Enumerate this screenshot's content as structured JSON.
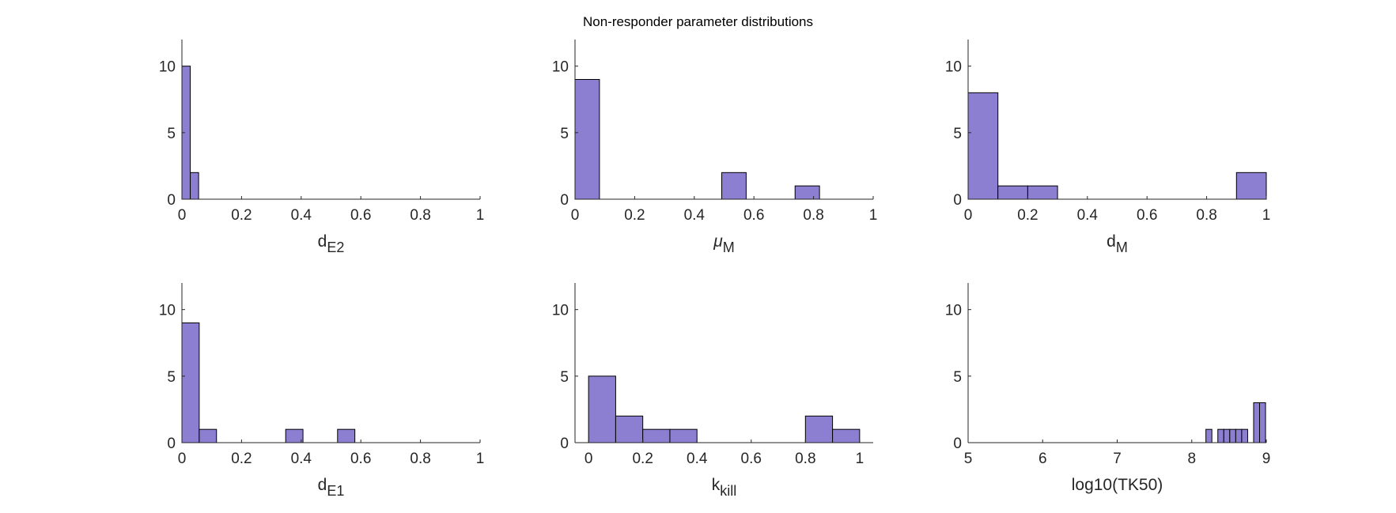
{
  "figure": {
    "title": "Non-responder parameter distributions",
    "bar_color": "#8c7fd2",
    "edge_color": "#000000"
  },
  "chart_data": [
    {
      "type": "bar",
      "subtype": "histogram",
      "xlabel": {
        "base": "d",
        "sub": "E2"
      },
      "xlim": [
        0,
        1
      ],
      "ylim": [
        0,
        12
      ],
      "xticks": [
        0,
        0.2,
        0.4,
        0.6,
        0.8,
        1
      ],
      "xtick_labels": [
        "0",
        "0.2",
        "0.4",
        "0.6",
        "0.8",
        "1"
      ],
      "yticks": [
        0,
        5,
        10
      ],
      "bins": [
        {
          "x0": 0,
          "x1": 0.028,
          "count": 10
        },
        {
          "x0": 0.028,
          "x1": 0.056,
          "count": 2
        }
      ]
    },
    {
      "type": "bar",
      "subtype": "histogram",
      "xlabel": {
        "base": "μ",
        "sub": "M",
        "italic_base": true
      },
      "xlim": [
        0,
        1
      ],
      "ylim": [
        0,
        12
      ],
      "xticks": [
        0,
        0.2,
        0.4,
        0.6,
        0.8,
        1
      ],
      "xtick_labels": [
        "0",
        "0.2",
        "0.4",
        "0.6",
        "0.8",
        "1"
      ],
      "yticks": [
        0,
        5,
        10
      ],
      "bins": [
        {
          "x0": 0,
          "x1": 0.082,
          "count": 9
        },
        {
          "x0": 0.082,
          "x1": 0.164,
          "count": 0
        },
        {
          "x0": 0.164,
          "x1": 0.246,
          "count": 0
        },
        {
          "x0": 0.246,
          "x1": 0.328,
          "count": 0
        },
        {
          "x0": 0.328,
          "x1": 0.41,
          "count": 0
        },
        {
          "x0": 0.41,
          "x1": 0.492,
          "count": 0
        },
        {
          "x0": 0.492,
          "x1": 0.574,
          "count": 2
        },
        {
          "x0": 0.574,
          "x1": 0.656,
          "count": 0
        },
        {
          "x0": 0.656,
          "x1": 0.738,
          "count": 0
        },
        {
          "x0": 0.738,
          "x1": 0.82,
          "count": 1
        }
      ]
    },
    {
      "type": "bar",
      "subtype": "histogram",
      "xlabel": {
        "base": "d",
        "sub": "M"
      },
      "xlim": [
        0,
        1
      ],
      "ylim": [
        0,
        12
      ],
      "xticks": [
        0,
        0.2,
        0.4,
        0.6,
        0.8,
        1
      ],
      "xtick_labels": [
        "0",
        "0.2",
        "0.4",
        "0.6",
        "0.8",
        "1"
      ],
      "yticks": [
        0,
        5,
        10
      ],
      "bins": [
        {
          "x0": 0,
          "x1": 0.1,
          "count": 8
        },
        {
          "x0": 0.1,
          "x1": 0.2,
          "count": 1
        },
        {
          "x0": 0.2,
          "x1": 0.3,
          "count": 1
        },
        {
          "x0": 0.3,
          "x1": 0.4,
          "count": 0
        },
        {
          "x0": 0.4,
          "x1": 0.5,
          "count": 0
        },
        {
          "x0": 0.5,
          "x1": 0.6,
          "count": 0
        },
        {
          "x0": 0.6,
          "x1": 0.7,
          "count": 0
        },
        {
          "x0": 0.7,
          "x1": 0.8,
          "count": 0
        },
        {
          "x0": 0.8,
          "x1": 0.9,
          "count": 0
        },
        {
          "x0": 0.9,
          "x1": 1.0,
          "count": 2
        }
      ]
    },
    {
      "type": "bar",
      "subtype": "histogram",
      "xlabel": {
        "base": "d",
        "sub": "E1"
      },
      "xlim": [
        0,
        1
      ],
      "ylim": [
        0,
        12
      ],
      "xticks": [
        0,
        0.2,
        0.4,
        0.6,
        0.8,
        1
      ],
      "xtick_labels": [
        "0",
        "0.2",
        "0.4",
        "0.6",
        "0.8",
        "1"
      ],
      "yticks": [
        0,
        5,
        10
      ],
      "bins": [
        {
          "x0": 0,
          "x1": 0.058,
          "count": 9
        },
        {
          "x0": 0.058,
          "x1": 0.116,
          "count": 1
        },
        {
          "x0": 0.116,
          "x1": 0.174,
          "count": 0
        },
        {
          "x0": 0.174,
          "x1": 0.232,
          "count": 0
        },
        {
          "x0": 0.232,
          "x1": 0.29,
          "count": 0
        },
        {
          "x0": 0.29,
          "x1": 0.348,
          "count": 0
        },
        {
          "x0": 0.348,
          "x1": 0.406,
          "count": 1
        },
        {
          "x0": 0.406,
          "x1": 0.464,
          "count": 0
        },
        {
          "x0": 0.464,
          "x1": 0.522,
          "count": 0
        },
        {
          "x0": 0.522,
          "x1": 0.58,
          "count": 1
        }
      ]
    },
    {
      "type": "bar",
      "subtype": "histogram",
      "xlabel": {
        "base": "k",
        "sub": "kill"
      },
      "xlim": [
        -0.05,
        1.05
      ],
      "ylim": [
        0,
        12
      ],
      "xticks": [
        0,
        0.2,
        0.4,
        0.6,
        0.8,
        1
      ],
      "xtick_labels": [
        "0",
        "0.2",
        "0.4",
        "0.6",
        "0.8",
        "1"
      ],
      "yticks": [
        0,
        5,
        10
      ],
      "bins": [
        {
          "x0": 0,
          "x1": 0.1,
          "count": 5
        },
        {
          "x0": 0.1,
          "x1": 0.2,
          "count": 2
        },
        {
          "x0": 0.2,
          "x1": 0.3,
          "count": 1
        },
        {
          "x0": 0.3,
          "x1": 0.4,
          "count": 1
        },
        {
          "x0": 0.4,
          "x1": 0.5,
          "count": 0
        },
        {
          "x0": 0.5,
          "x1": 0.6,
          "count": 0
        },
        {
          "x0": 0.6,
          "x1": 0.7,
          "count": 0
        },
        {
          "x0": 0.7,
          "x1": 0.8,
          "count": 0
        },
        {
          "x0": 0.8,
          "x1": 0.9,
          "count": 2
        },
        {
          "x0": 0.9,
          "x1": 1.0,
          "count": 1
        }
      ]
    },
    {
      "type": "bar",
      "subtype": "histogram",
      "xlabel": {
        "base": "log10(TK50)",
        "sub": ""
      },
      "xlim": [
        5,
        9
      ],
      "ylim": [
        0,
        12
      ],
      "xticks": [
        5,
        6,
        7,
        8,
        9
      ],
      "xtick_labels": [
        "5",
        "6",
        "7",
        "8",
        "9"
      ],
      "yticks": [
        0,
        5,
        10
      ],
      "bins": [
        {
          "x0": 8.19,
          "x1": 8.27,
          "count": 1
        },
        {
          "x0": 8.27,
          "x1": 8.35,
          "count": 0
        },
        {
          "x0": 8.35,
          "x1": 8.43,
          "count": 1
        },
        {
          "x0": 8.43,
          "x1": 8.51,
          "count": 1
        },
        {
          "x0": 8.51,
          "x1": 8.59,
          "count": 1
        },
        {
          "x0": 8.59,
          "x1": 8.67,
          "count": 1
        },
        {
          "x0": 8.67,
          "x1": 8.75,
          "count": 1
        },
        {
          "x0": 8.75,
          "x1": 8.83,
          "count": 0
        },
        {
          "x0": 8.83,
          "x1": 8.91,
          "count": 3
        },
        {
          "x0": 8.91,
          "x1": 8.99,
          "count": 3
        }
      ]
    }
  ]
}
